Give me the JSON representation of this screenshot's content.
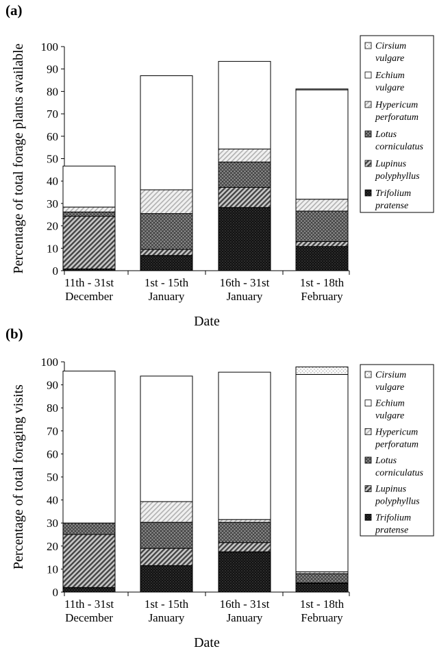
{
  "chart_data": [
    {
      "panel_label": "(a)",
      "type": "bar",
      "stacked": true,
      "xlabel": "Date",
      "ylabel": "Percentage of total forage plants available",
      "ylim": [
        0,
        100
      ],
      "yticks": [
        0,
        10,
        20,
        30,
        40,
        50,
        60,
        70,
        80,
        90,
        100
      ],
      "categories": [
        [
          "11th - 31st",
          "December"
        ],
        [
          "1st - 15th",
          "January"
        ],
        [
          "16th - 31st",
          "January"
        ],
        [
          "1st - 18th",
          "February"
        ]
      ],
      "series": [
        {
          "name": "Trifolium pratense",
          "pattern": "dark-dots",
          "values": [
            0.8,
            6.8,
            28.2,
            10.8
          ]
        },
        {
          "name": "Lupinus polyphyllus",
          "pattern": "diagonal",
          "values": [
            23.5,
            2.7,
            9.0,
            2.2
          ]
        },
        {
          "name": "Lotus corniculatus",
          "pattern": "crosshatch",
          "values": [
            1.9,
            16.0,
            11.3,
            13.6
          ]
        },
        {
          "name": "Hypericum perforatum",
          "pattern": "light-diagonal",
          "values": [
            2.2,
            10.6,
            5.8,
            5.3
          ]
        },
        {
          "name": "Echium vulgare",
          "pattern": "white",
          "values": [
            18.3,
            50.9,
            39.1,
            48.8
          ]
        },
        {
          "name": "Cirsium vulgare",
          "pattern": "light-dots",
          "values": [
            0,
            0,
            0,
            0.4
          ]
        }
      ],
      "legend_order": [
        "Cirsium vulgare",
        "Echium vulgare",
        "Hypericum perforatum",
        "Lotus corniculatus",
        "Lupinus polyphyllus",
        "Trifolium pratense"
      ],
      "legend_labels": [
        [
          "Cirsium",
          "vulgare"
        ],
        [
          "Echium",
          "vulgare"
        ],
        [
          "Hypericum",
          "perforatum"
        ],
        [
          "Lotus",
          "corniculatus"
        ],
        [
          "Lupinus",
          "polyphyllus"
        ],
        [
          "Trifolium",
          "pratense"
        ]
      ],
      "legend_position": "right"
    },
    {
      "panel_label": "(b)",
      "type": "bar",
      "stacked": true,
      "xlabel": "Date",
      "ylabel": "Percentage of total foraging visits",
      "ylim": [
        0,
        100
      ],
      "yticks": [
        0,
        10,
        20,
        30,
        40,
        50,
        60,
        70,
        80,
        90,
        100
      ],
      "categories": [
        [
          "11th - 31st",
          "December"
        ],
        [
          "1st - 15th",
          "January"
        ],
        [
          "16th - 31st",
          "January"
        ],
        [
          "1st - 18th",
          "February"
        ]
      ],
      "series": [
        {
          "name": "Trifolium pratense",
          "pattern": "dark-dots",
          "values": [
            2.0,
            11.5,
            17.5,
            3.8
          ]
        },
        {
          "name": "Lupinus polyphyllus",
          "pattern": "diagonal",
          "values": [
            23.0,
            7.5,
            4.0,
            0.2
          ]
        },
        {
          "name": "Lotus corniculatus",
          "pattern": "crosshatch",
          "values": [
            5.0,
            11.3,
            8.8,
            4.0
          ]
        },
        {
          "name": "Hypericum perforatum",
          "pattern": "light-diagonal",
          "values": [
            0,
            9.0,
            1.2,
            0.8
          ]
        },
        {
          "name": "Echium vulgare",
          "pattern": "white",
          "values": [
            66.0,
            54.5,
            64.0,
            85.7
          ]
        },
        {
          "name": "Cirsium vulgare",
          "pattern": "light-dots",
          "values": [
            0,
            0,
            0,
            3.3
          ]
        }
      ],
      "legend_order": [
        "Cirsium vulgare",
        "Echium vulgare",
        "Hypericum perforatum",
        "Lotus corniculatus",
        "Lupinus polyphyllus",
        "Trifolium pratense"
      ],
      "legend_labels": [
        [
          "Cirsium",
          "vulgare"
        ],
        [
          "Echium",
          "vulgare"
        ],
        [
          "Hypericum",
          "perforatum"
        ],
        [
          "Lotus",
          "corniculatus"
        ],
        [
          "Lupinus",
          "polyphyllus"
        ],
        [
          "Trifolium",
          "pratense"
        ]
      ],
      "legend_position": "right"
    }
  ]
}
